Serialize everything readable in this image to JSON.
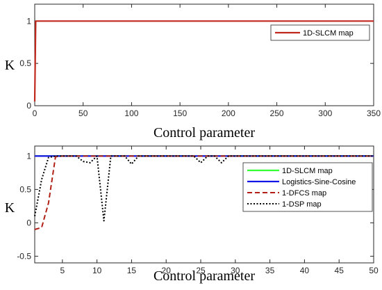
{
  "chart_data": [
    {
      "type": "line",
      "xlabel": "Control parameter",
      "ylabel": "K",
      "xlim": [
        0,
        350
      ],
      "ylim": [
        0,
        1.2
      ],
      "xticks": [
        "0",
        "50",
        "100",
        "150",
        "200",
        "250",
        "300",
        "350"
      ],
      "yticks": [
        "0",
        "0.5",
        "1"
      ],
      "legend_position": "top-right",
      "series": [
        {
          "name": "1D-SLCM map",
          "color": "#c0281e",
          "style": "solid",
          "x": [
            0,
            1,
            2,
            350
          ],
          "y": [
            0.05,
            1.0,
            1.0,
            1.0
          ]
        }
      ]
    },
    {
      "type": "line",
      "xlabel": "Control parameter",
      "ylabel": "K",
      "xlim": [
        1,
        50
      ],
      "ylim": [
        -0.6,
        1.15
      ],
      "xticks": [
        "5",
        "10",
        "15",
        "20",
        "25",
        "30",
        "35",
        "40",
        "45",
        "50"
      ],
      "yticks": [
        "-0.5",
        "0",
        "0.5",
        "1"
      ],
      "legend_position": "right",
      "series": [
        {
          "name": "1D-SLCM map",
          "color": "#33ff33",
          "style": "solid",
          "x": [
            1,
            50
          ],
          "y": [
            1.0,
            1.0
          ]
        },
        {
          "name": "Logistics-Sine-Cosine",
          "color": "#1414e6",
          "style": "solid",
          "x": [
            1,
            50
          ],
          "y": [
            1.0,
            1.0
          ]
        },
        {
          "name": "1-DFCS map",
          "color": "#b22015",
          "style": "dashed",
          "x": [
            1,
            2,
            3,
            4,
            5,
            50
          ],
          "y": [
            -0.1,
            -0.07,
            0.3,
            0.99,
            1.0,
            1.0
          ]
        },
        {
          "name": "1-DSP map",
          "color": "#000000",
          "style": "dotted",
          "x": [
            1,
            2,
            3,
            4,
            5,
            6,
            7,
            8,
            9,
            10,
            11,
            12,
            13,
            14,
            15,
            16,
            17,
            18,
            19,
            20,
            21,
            22,
            23,
            24,
            25,
            26,
            27,
            28,
            29,
            30,
            35,
            40,
            45,
            50
          ],
          "y": [
            0.1,
            0.65,
            0.98,
            1.0,
            1.0,
            1.0,
            1.0,
            0.92,
            0.9,
            1.0,
            0.03,
            1.0,
            1.0,
            1.0,
            0.88,
            1.0,
            1.0,
            1.0,
            1.0,
            1.0,
            1.0,
            1.0,
            1.0,
            1.0,
            0.9,
            1.0,
            1.0,
            0.9,
            1.0,
            1.0,
            1.0,
            1.0,
            1.0,
            1.0
          ]
        }
      ]
    }
  ]
}
